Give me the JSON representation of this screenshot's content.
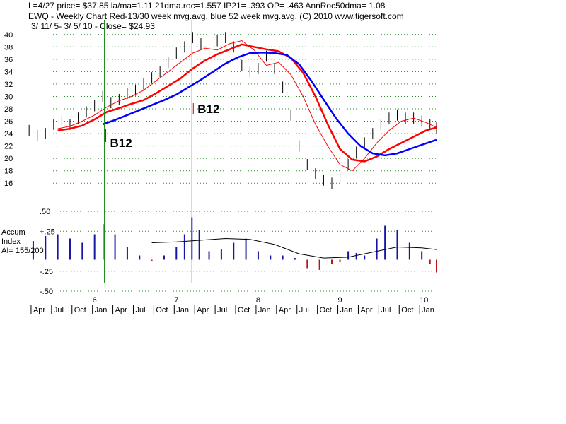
{
  "header": {
    "line1": "L=4/27  price= $37.85  la/ma=1.11 21dma.roc=1.557 IP21= .393 OP= .463 AnnRoc50dma= 1.08",
    "line2": "EWQ  - Weekly Chart   Red-13/30 week mvg.avg.  blue 52 week mvg.avg.  (C) 2010 www.tigersoft.com",
    "line3": "3/ 11/ 5- 3/ 5/ 10 -     Close= $24.93"
  },
  "annotations": {
    "signal1": "B12",
    "signal2": "B12"
  },
  "indicator_label": {
    "line1": "Accum",
    "line2": "Index",
    "line3": "AI= 155/200"
  },
  "chart_data": [
    {
      "type": "line",
      "title": "EWQ - Weekly Chart",
      "subtitle": "Red-13/30 week mvg.avg.  blue 52 week mvg.avg.",
      "xlabel": "",
      "ylabel": "",
      "grid": true,
      "ylim": [
        15,
        41
      ],
      "yticks": [
        40,
        38,
        36,
        34,
        32,
        30,
        28,
        26,
        24,
        22,
        20,
        18,
        16
      ],
      "xlim": [
        2005.19,
        2010.18
      ],
      "series": [
        {
          "kind": "bars",
          "color": "#000000",
          "x": [
            2005.2,
            2005.3,
            2005.4,
            2005.5,
            2005.6,
            2005.7,
            2005.8,
            2005.9,
            2006.0,
            2006.1,
            2006.2,
            2006.3,
            2006.4,
            2006.5,
            2006.6,
            2006.7,
            2006.8,
            2006.9,
            2007.0,
            2007.1,
            2007.2,
            2007.3,
            2007.4,
            2007.5,
            2007.6,
            2007.7,
            2007.8,
            2007.9,
            2008.0,
            2008.1,
            2008.2,
            2008.3,
            2008.4,
            2008.5,
            2008.6,
            2008.7,
            2008.8,
            2008.9,
            2009.0,
            2009.1,
            2009.2,
            2009.3,
            2009.4,
            2009.5,
            2009.6,
            2009.7,
            2009.8,
            2009.9,
            2010.0,
            2010.1,
            2010.18
          ],
          "values": [
            24.5,
            23.7,
            24.0,
            25.5,
            26.0,
            25.5,
            26.5,
            27.5,
            28.5,
            30.0,
            29.0,
            29.5,
            30.5,
            31.0,
            32.0,
            33.0,
            34.0,
            35.5,
            37.0,
            38.0,
            39.5,
            38.5,
            37.0,
            39.0,
            39.5,
            38.0,
            35.0,
            34.0,
            34.5,
            36.5,
            34.5,
            31.5,
            27.0,
            22.0,
            19.0,
            17.5,
            16.5,
            16.0,
            17.0,
            19.0,
            21.0,
            22.5,
            24.0,
            25.5,
            26.5,
            27.0,
            26.5,
            26.5,
            26.0,
            25.5,
            24.93
          ]
        },
        {
          "name": "13 week mvg.avg.",
          "color": "#ff0000",
          "x": [
            2005.55,
            2005.7,
            2005.85,
            2006.0,
            2006.15,
            2006.3,
            2006.45,
            2006.6,
            2006.75,
            2006.9,
            2007.05,
            2007.2,
            2007.35,
            2007.5,
            2007.65,
            2007.8,
            2007.95,
            2008.1,
            2008.25,
            2008.4,
            2008.55,
            2008.7,
            2008.85,
            2009.0,
            2009.15,
            2009.3,
            2009.45,
            2009.6,
            2009.75,
            2009.9,
            2010.05,
            2010.18
          ],
          "values": [
            24.8,
            25.2,
            26.0,
            27.0,
            28.3,
            29.3,
            30.0,
            31.0,
            32.5,
            34.0,
            35.5,
            37.0,
            37.8,
            37.5,
            38.5,
            39.0,
            37.5,
            35.0,
            35.5,
            33.5,
            30.0,
            25.5,
            22.0,
            19.0,
            18.0,
            20.0,
            22.5,
            24.5,
            26.0,
            26.5,
            25.8,
            25.0
          ]
        },
        {
          "name": "30 week mvg.avg.",
          "color": "#ff0000",
          "x": [
            2005.55,
            2005.7,
            2005.85,
            2006.0,
            2006.15,
            2006.3,
            2006.45,
            2006.6,
            2006.75,
            2006.9,
            2007.05,
            2007.2,
            2007.35,
            2007.5,
            2007.65,
            2007.8,
            2007.95,
            2008.1,
            2008.25,
            2008.4,
            2008.55,
            2008.7,
            2008.85,
            2009.0,
            2009.15,
            2009.3,
            2009.45,
            2009.6,
            2009.75,
            2009.9,
            2010.05,
            2010.18
          ],
          "values": [
            24.5,
            24.8,
            25.3,
            26.3,
            27.5,
            28.1,
            28.8,
            29.4,
            30.5,
            31.7,
            32.9,
            34.5,
            35.8,
            36.8,
            37.6,
            38.4,
            38.0,
            37.6,
            37.3,
            36.2,
            33.8,
            30.0,
            25.5,
            21.5,
            19.8,
            19.5,
            20.3,
            21.5,
            22.5,
            23.5,
            24.5,
            25.0
          ]
        },
        {
          "name": "52 week mvg.avg.",
          "color": "#0000ff",
          "x": [
            2006.1,
            2006.25,
            2006.4,
            2006.55,
            2006.7,
            2006.85,
            2007.0,
            2007.15,
            2007.3,
            2007.45,
            2007.6,
            2007.75,
            2007.9,
            2008.05,
            2008.2,
            2008.35,
            2008.5,
            2008.65,
            2008.8,
            2008.95,
            2009.1,
            2009.25,
            2009.4,
            2009.55,
            2009.7,
            2009.85,
            2010.0,
            2010.18
          ],
          "values": [
            25.5,
            26.2,
            27.0,
            27.8,
            28.6,
            29.4,
            30.3,
            31.5,
            32.7,
            34.0,
            35.3,
            36.3,
            37.0,
            37.1,
            37.0,
            36.7,
            35.2,
            32.5,
            29.5,
            26.5,
            24.0,
            22.0,
            20.8,
            20.5,
            20.8,
            21.5,
            22.2,
            23.0
          ]
        }
      ],
      "signals": [
        {
          "label": "B12",
          "x": 2006.12
        },
        {
          "label": "B12",
          "x": 2007.19
        }
      ],
      "vlines": [
        2006.12,
        2007.19
      ]
    },
    {
      "type": "bar",
      "name": "Accum Index",
      "ylim": [
        -0.5,
        0.5
      ],
      "yticks": [
        ".50",
        "+.25",
        "-.25",
        "-.50"
      ],
      "ytick_values": [
        0.5,
        0.25,
        -0.25,
        -0.5
      ],
      "grid": true,
      "x": [
        2005.25,
        2005.4,
        2005.55,
        2005.7,
        2005.85,
        2006.0,
        2006.12,
        2006.25,
        2006.4,
        2006.55,
        2006.7,
        2006.85,
        2007.0,
        2007.1,
        2007.19,
        2007.28,
        2007.4,
        2007.55,
        2007.7,
        2007.85,
        2008.0,
        2008.15,
        2008.3,
        2008.45,
        2008.6,
        2008.75,
        2008.9,
        2009.0,
        2009.1,
        2009.2,
        2009.3,
        2009.45,
        2009.55,
        2009.7,
        2009.85,
        2010.0,
        2010.1,
        2010.18
      ],
      "values": [
        0.22,
        0.28,
        0.3,
        0.25,
        0.2,
        0.3,
        0.42,
        0.3,
        0.15,
        0.05,
        -0.02,
        0.05,
        0.15,
        0.3,
        0.5,
        0.35,
        0.1,
        0.12,
        0.2,
        0.25,
        0.1,
        0.05,
        0.05,
        0.02,
        -0.1,
        -0.12,
        -0.05,
        -0.03,
        0.1,
        0.08,
        0.05,
        0.25,
        0.4,
        0.35,
        0.2,
        0.1,
        -0.05,
        -0.15
      ],
      "mvg_avg": {
        "color": "#000000",
        "x": [
          2006.7,
          2007.0,
          2007.3,
          2007.6,
          2007.9,
          2008.2,
          2008.5,
          2008.8,
          2009.1,
          2009.4,
          2009.7,
          2010.0,
          2010.18
        ],
        "values": [
          0.2,
          0.21,
          0.23,
          0.25,
          0.24,
          0.18,
          0.07,
          0.02,
          0.03,
          0.09,
          0.15,
          0.14,
          0.12
        ]
      },
      "xticks": [
        "6",
        "7",
        "8",
        "9",
        "10"
      ],
      "xtick_values": [
        2006.0,
        2007.0,
        2008.0,
        2009.0,
        2010.0
      ],
      "month_labels": [
        "Apr",
        "Jul",
        "Oct",
        "Jan",
        "Apr",
        "Jul",
        "Oct",
        "Jan",
        "Apr",
        "Jul",
        "Oct",
        "Jan",
        "Apr",
        "Jul",
        "Oct",
        "Jan",
        "Apr",
        "Jul",
        "Oct",
        "Jan",
        "Apr",
        "Jul",
        "Oct",
        "Jan"
      ],
      "month_values": [
        2005.25,
        2005.5,
        2005.75,
        2006.0,
        2006.25,
        2006.5,
        2006.75,
        2007.0,
        2007.25,
        2007.5,
        2007.75,
        2008.0,
        2008.25,
        2008.5,
        2008.75,
        2009.0,
        2009.25,
        2009.5,
        2009.75,
        2010.0,
        2010.25,
        2010.5,
        2010.75,
        2011.0
      ]
    }
  ]
}
